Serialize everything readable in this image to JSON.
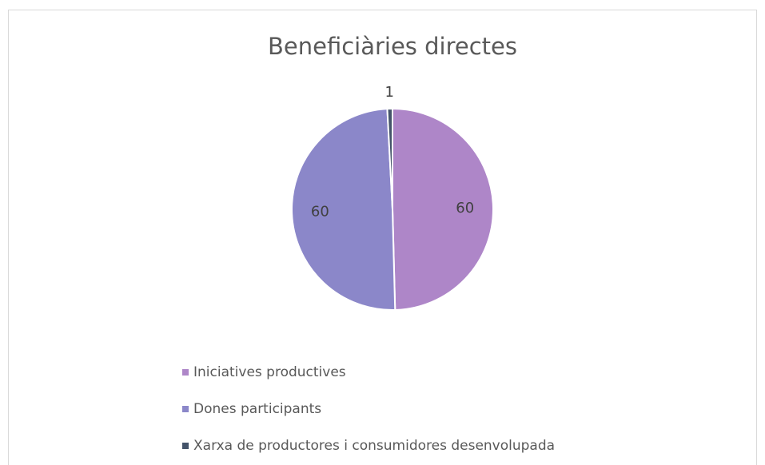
{
  "chart_data": {
    "type": "pie",
    "title": "Beneficiàries directes",
    "categories": [
      "Iniciatives productives",
      "Dones participants",
      "Xarxa de productores i consumidores desenvolupada"
    ],
    "values": [
      60,
      60,
      1
    ],
    "colors": [
      "#ae86c8",
      "#8b87c9",
      "#44546a"
    ],
    "legend": "bottom"
  }
}
